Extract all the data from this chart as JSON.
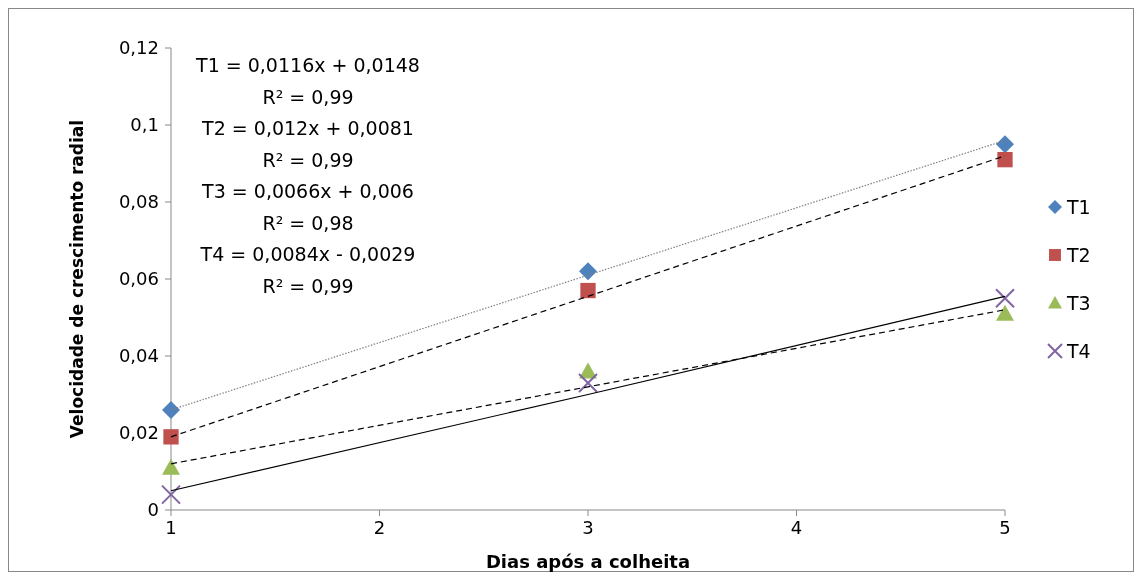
{
  "chart_data": {
    "type": "scatter",
    "xlabel": "Dias após a colheita",
    "ylabel": "Velocidade de crescimento radial",
    "x": [
      1,
      3,
      5
    ],
    "series": [
      {
        "name": "T1",
        "color": "#4f81bd",
        "marker": "diamond",
        "values": [
          0.026,
          0.062,
          0.095
        ]
      },
      {
        "name": "T2",
        "color": "#c0504d",
        "marker": "square",
        "values": [
          0.019,
          0.057,
          0.091
        ]
      },
      {
        "name": "T3",
        "color": "#9bbb59",
        "marker": "triangle",
        "values": [
          0.011,
          0.036,
          0.051
        ]
      },
      {
        "name": "T4",
        "color": "#8064a2",
        "marker": "cross",
        "values": [
          0.004,
          0.033,
          0.055
        ]
      },
      {
        "type": "line",
        "color": "#808080",
        "line_style": "dotted",
        "values": [
          0.026,
          0.061,
          0.096
        ]
      },
      {
        "type": "line",
        "color": "#000000",
        "line_style": "dashed",
        "values": [
          0.019,
          0.0555,
          0.092
        ]
      },
      {
        "type": "line",
        "color": "#000000",
        "line_style": "dashed",
        "values": [
          0.012,
          0.032,
          0.052
        ]
      },
      {
        "type": "line",
        "color": "#000000",
        "line_style": "solid",
        "values": [
          0.005,
          0.03,
          0.0555
        ]
      }
    ],
    "xlim": [
      1,
      5
    ],
    "xticks": [
      1,
      2,
      3,
      4,
      5
    ],
    "ylim": [
      0,
      0.12
    ],
    "yticks": [
      {
        "value": 0,
        "label": "0"
      },
      {
        "value": 0.02,
        "label": "0,02"
      },
      {
        "value": 0.04,
        "label": "0,04"
      },
      {
        "value": 0.06,
        "label": "0,06"
      },
      {
        "value": 0.08,
        "label": "0,08"
      },
      {
        "value": 0.1,
        "label": "0,1"
      },
      {
        "value": 0.12,
        "label": "0,12"
      }
    ],
    "annotations": [
      "T1 = 0,0116x + 0,0148",
      "R² = 0,99",
      "T2 = 0,012x + 0,0081",
      "R² = 0,99",
      "T3 = 0,0066x + 0,006",
      "R² = 0,98",
      "T4 = 0,0084x - 0,0029",
      "R² = 0,99"
    ],
    "legend": "right",
    "grid": false
  }
}
